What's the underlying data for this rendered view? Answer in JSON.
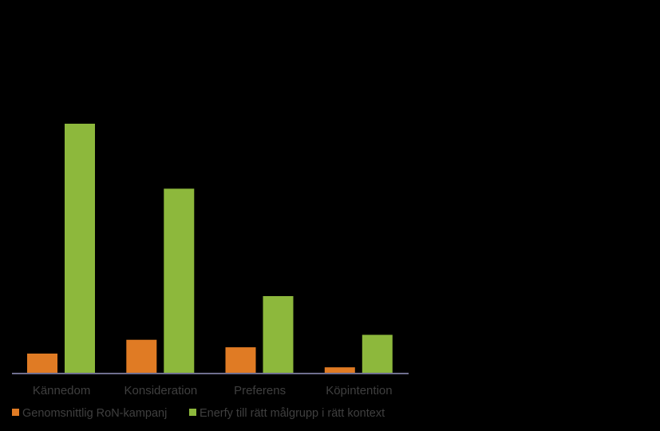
{
  "chart_data": {
    "type": "bar",
    "categories": [
      "Kännedom",
      "Konsideration",
      "Preferens",
      "Köpintention"
    ],
    "series": [
      {
        "name": "Genomsnittlig RoN-kampanj",
        "color": "#e07b24",
        "values": [
          8,
          13.5,
          10.5,
          2.5
        ]
      },
      {
        "name": "Enerfy till rätt målgrupp i rätt kontext",
        "color": "#8db83c",
        "values": [
          100,
          74,
          31,
          15.5
        ]
      }
    ],
    "ylim": [
      0,
      100
    ],
    "grid": false,
    "legend": "bottom",
    "axis_color": "#6f6f8f"
  }
}
